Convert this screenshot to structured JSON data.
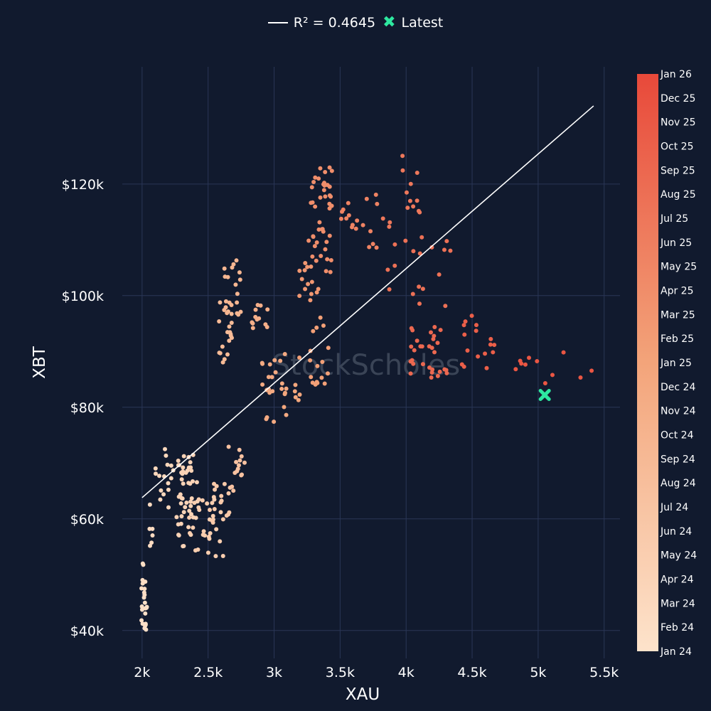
{
  "legend": {
    "fit_label": "R² = 0.4645",
    "latest_label": "Latest"
  },
  "watermark": "StockScholes",
  "colors": {
    "background": "#111a2e",
    "grid": "#2a3656",
    "fit_line": "#ffffff",
    "latest": "#2ee8a0",
    "scale_low": "#fde3cb",
    "scale_high": "#e8493a"
  },
  "chart_data": {
    "type": "scatter",
    "title": "",
    "xlabel": "XAU",
    "ylabel": "XBT",
    "xlim": [
      1850,
      5620
    ],
    "ylim": [
      35000,
      141000
    ],
    "x_ticks": [
      2000,
      2500,
      3000,
      3500,
      4000,
      4500,
      5000,
      5500
    ],
    "x_tick_labels": [
      "2k",
      "2.5k",
      "3k",
      "3.5k",
      "4k",
      "4.5k",
      "5k",
      "5.5k"
    ],
    "y_ticks": [
      40000,
      60000,
      80000,
      100000,
      120000
    ],
    "y_tick_labels": [
      "$40k",
      "$60k",
      "$80k",
      "$100k",
      "$120k"
    ],
    "fit_line": {
      "name": "R² = 0.4645",
      "x": [
        2000,
        5420
      ],
      "y": [
        63800,
        134000
      ]
    },
    "latest": {
      "name": "Latest",
      "x": 5050,
      "y": 82200
    },
    "colorbar_labels": [
      "Jan 26",
      "Dec 25",
      "Nov 25",
      "Oct 25",
      "Sep 25",
      "Aug 25",
      "Jul 25",
      "Jun 25",
      "May 25",
      "Apr 25",
      "Mar 25",
      "Feb 25",
      "Jan 25",
      "Dec 24",
      "Nov 24",
      "Oct 24",
      "Sep 24",
      "Aug 24",
      "Jul 24",
      "Jun 24",
      "May 24",
      "Apr 24",
      "Mar 24",
      "Feb 24",
      "Jan 24"
    ],
    "clusters": [
      {
        "t": 0.02,
        "x": [
          1990,
          2040
        ],
        "y": [
          39000,
          45000
        ],
        "n": 14
      },
      {
        "t": 0.04,
        "x": [
          1990,
          2025
        ],
        "y": [
          45000,
          53000
        ],
        "n": 10
      },
      {
        "t": 0.06,
        "x": [
          2030,
          2100
        ],
        "y": [
          55000,
          63000
        ],
        "n": 6
      },
      {
        "t": 0.09,
        "x": [
          2100,
          2250
        ],
        "y": [
          62000,
          73000
        ],
        "n": 16
      },
      {
        "t": 0.13,
        "x": [
          2260,
          2420
        ],
        "y": [
          55000,
          71500
        ],
        "n": 48
      },
      {
        "t": 0.17,
        "x": [
          2350,
          2620
        ],
        "y": [
          53000,
          64000
        ],
        "n": 30
      },
      {
        "t": 0.21,
        "x": [
          2500,
          2700
        ],
        "y": [
          59000,
          67000
        ],
        "n": 16
      },
      {
        "t": 0.26,
        "x": [
          2650,
          2780
        ],
        "y": [
          64000,
          73000
        ],
        "n": 14
      },
      {
        "t": 0.32,
        "x": [
          2580,
          2680
        ],
        "y": [
          88000,
          99000
        ],
        "n": 18
      },
      {
        "t": 0.36,
        "x": [
          2620,
          2770
        ],
        "y": [
          96000,
          106500
        ],
        "n": 20
      },
      {
        "t": 0.41,
        "x": [
          2830,
          2960
        ],
        "y": [
          94000,
          98500
        ],
        "n": 12
      },
      {
        "t": 0.45,
        "x": [
          2880,
          3100
        ],
        "y": [
          77000,
          90000
        ],
        "n": 22
      },
      {
        "t": 0.48,
        "x": [
          3050,
          3200
        ],
        "y": [
          80000,
          86000
        ],
        "n": 8
      },
      {
        "t": 0.52,
        "x": [
          3190,
          3420
        ],
        "y": [
          84000,
          97000
        ],
        "n": 18
      },
      {
        "t": 0.57,
        "x": [
          3180,
          3350
        ],
        "y": [
          99000,
          106000
        ],
        "n": 14
      },
      {
        "t": 0.62,
        "x": [
          3260,
          3440
        ],
        "y": [
          104000,
          123000
        ],
        "n": 45
      },
      {
        "t": 0.68,
        "x": [
          3480,
          3800
        ],
        "y": [
          108000,
          119000
        ],
        "n": 18
      },
      {
        "t": 0.74,
        "x": [
          3800,
          4120
        ],
        "y": [
          112000,
          125500
        ],
        "n": 14
      },
      {
        "t": 0.78,
        "x": [
          3860,
          4350
        ],
        "y": [
          98000,
          112000
        ],
        "n": 18
      },
      {
        "t": 0.83,
        "x": [
          4030,
          4340
        ],
        "y": [
          85000,
          95000
        ],
        "n": 30
      },
      {
        "t": 0.88,
        "x": [
          4420,
          4680
        ],
        "y": [
          87000,
          97500
        ],
        "n": 16
      },
      {
        "t": 0.93,
        "x": [
          4730,
          5420
        ],
        "y": [
          84000,
          90500
        ],
        "n": 11
      }
    ]
  }
}
